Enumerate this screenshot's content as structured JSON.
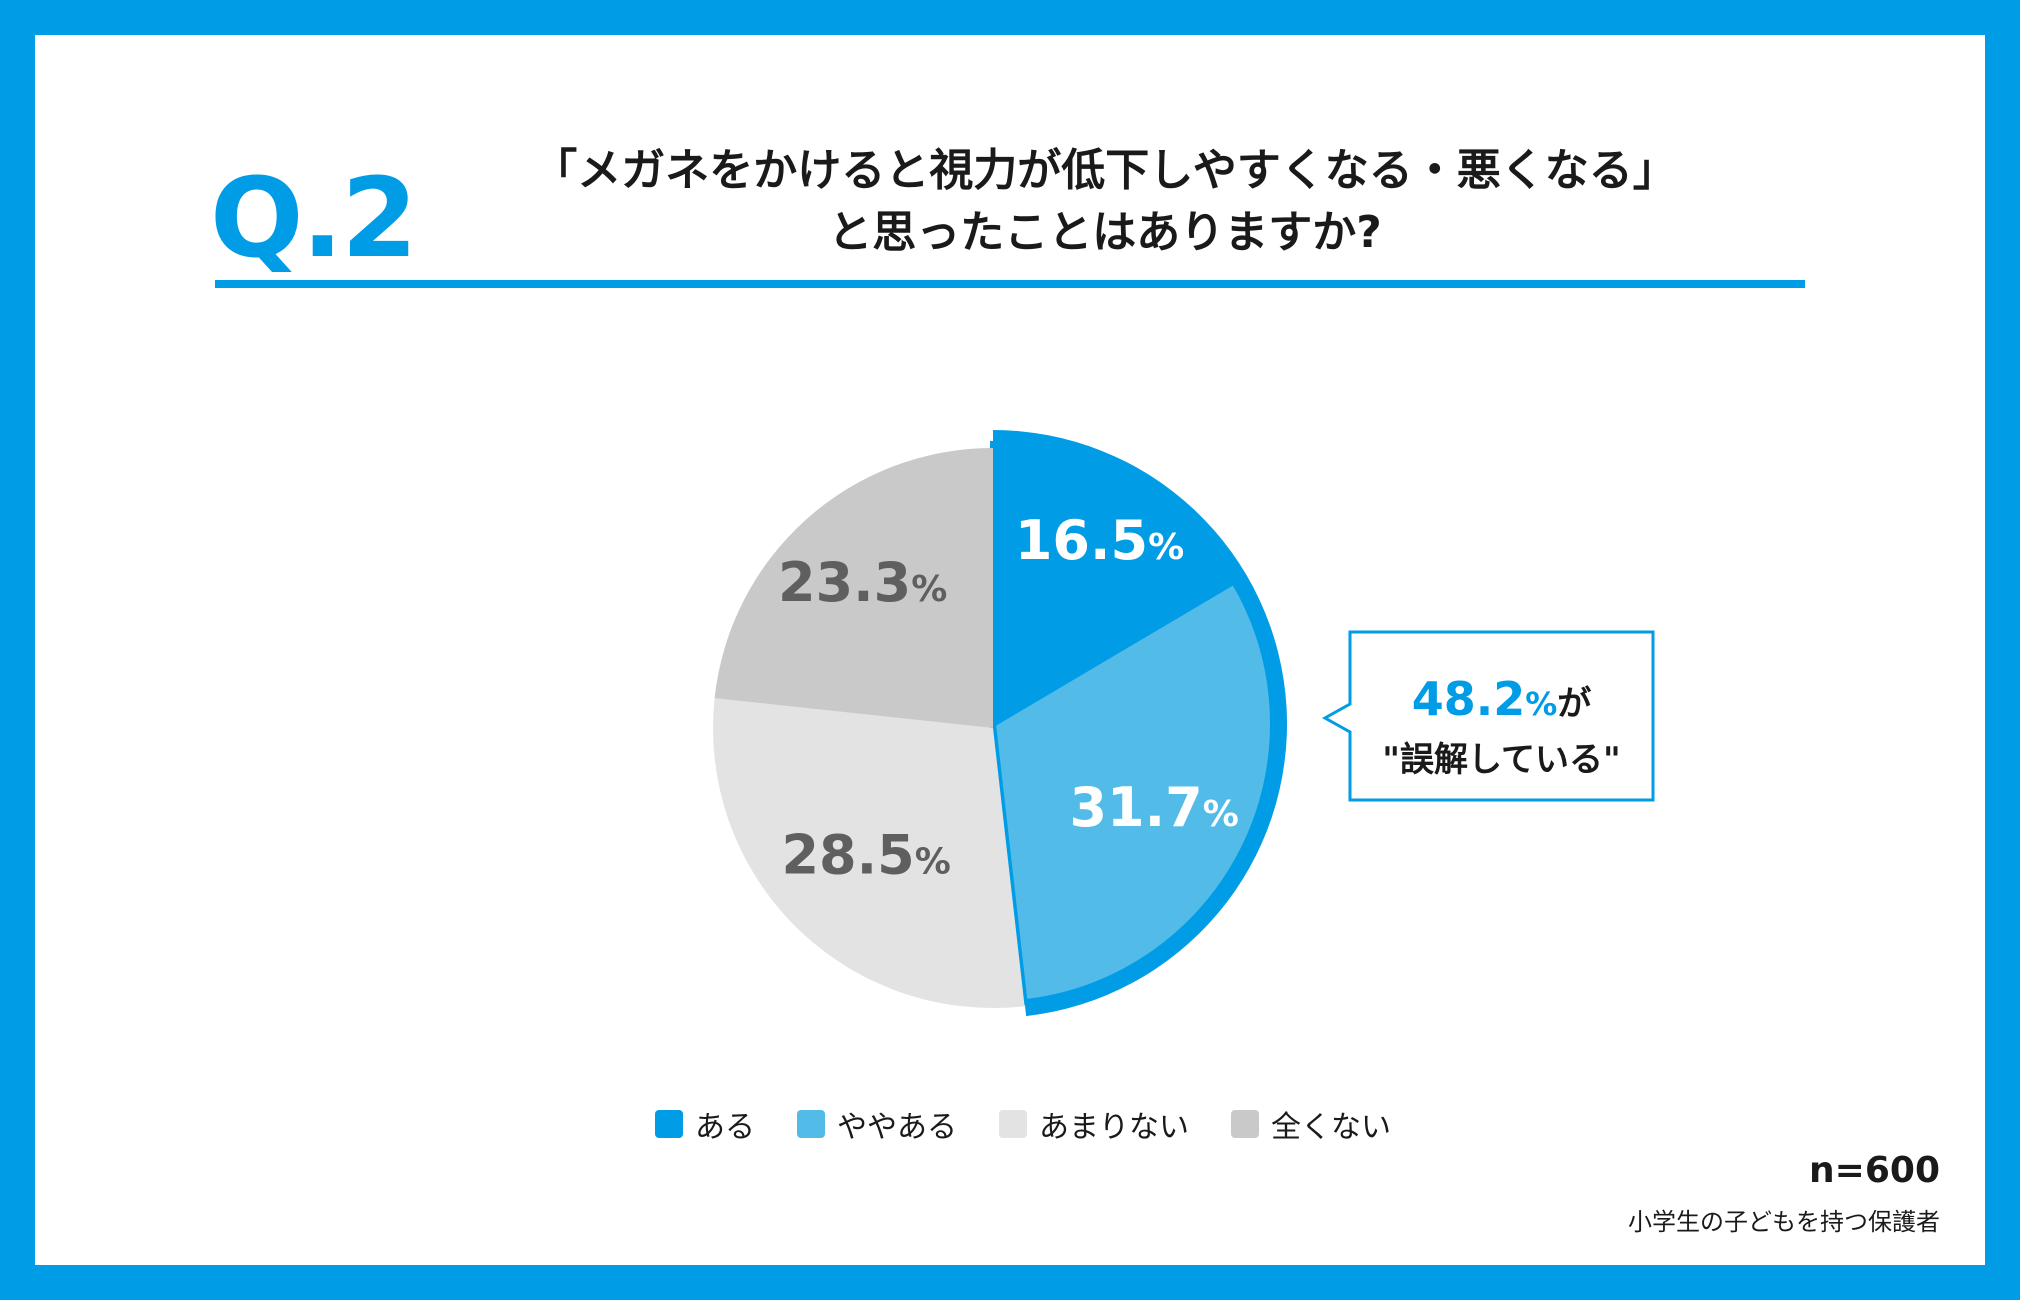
{
  "question": {
    "number": "Q.2",
    "title_line1": "「メガネをかけると視力が低下しやすくなる・悪くなる」",
    "title_line2": "と思ったことはありますか?"
  },
  "chart_data": {
    "type": "pie",
    "start": "12 o'clock, clockwise",
    "categories": [
      "ある",
      "ややある",
      "あまりない",
      "全くない"
    ],
    "values": [
      16.5,
      31.7,
      28.5,
      23.3
    ],
    "labels": [
      "16.5",
      "31.7",
      "28.5",
      "23.3"
    ],
    "unit": "%",
    "colors": [
      "#009ce6",
      "#52bbe8",
      "#e3e3e3",
      "#c9c9c9"
    ],
    "label_colors": [
      "#ffffff",
      "#ffffff",
      "#5f5f5f",
      "#5f5f5f"
    ],
    "highlighted_slices": [
      0,
      1
    ],
    "highlight_color": "#009ce6",
    "callout": {
      "value": "48.2",
      "unit": "%",
      "suffix": "が",
      "line2": "\"誤解している\""
    }
  },
  "footer": {
    "n": "n=600",
    "respondent": "小学生の子どもを持つ保護者"
  }
}
